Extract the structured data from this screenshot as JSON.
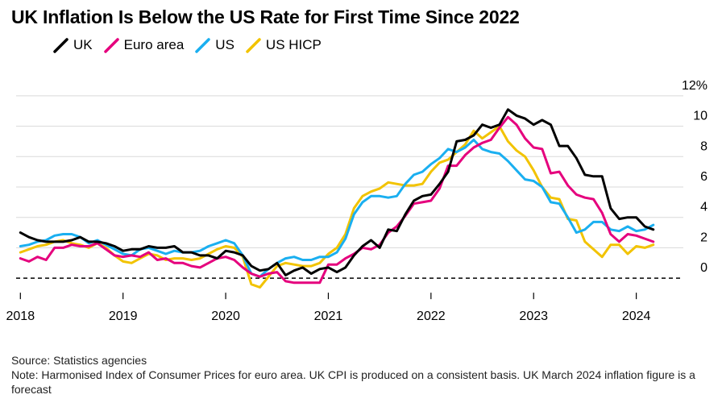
{
  "title": "UK Inflation Is Below the US Rate for First Time Since 2022",
  "source": "Source: Statistics agencies",
  "note": "Note: Harmonised Index of Consumer Prices for euro area. UK CPI is produced on a consistent basis. UK March 2024 inflation figure is a forecast",
  "chart_data": {
    "type": "line",
    "title": "UK Inflation Is Below the US Rate for First Time Since 2022",
    "xlabel": "",
    "ylabel": "",
    "x_ticks": [
      "2018",
      "2019",
      "2020",
      "2021",
      "2022",
      "2023",
      "2024"
    ],
    "y_ticks": [
      "0",
      "2",
      "4",
      "6",
      "8",
      "10",
      "12%"
    ],
    "xlim": [
      "2018-01",
      "2024-06"
    ],
    "ylim": [
      -1.0,
      13.0
    ],
    "grid": "horizontal",
    "zero_line": "dashed",
    "y_axis_side": "right",
    "legend_position": "top-left",
    "x": [
      "2018-01",
      "2018-02",
      "2018-03",
      "2018-04",
      "2018-05",
      "2018-06",
      "2018-07",
      "2018-08",
      "2018-09",
      "2018-10",
      "2018-11",
      "2018-12",
      "2019-01",
      "2019-02",
      "2019-03",
      "2019-04",
      "2019-05",
      "2019-06",
      "2019-07",
      "2019-08",
      "2019-09",
      "2019-10",
      "2019-11",
      "2019-12",
      "2020-01",
      "2020-02",
      "2020-03",
      "2020-04",
      "2020-05",
      "2020-06",
      "2020-07",
      "2020-08",
      "2020-09",
      "2020-10",
      "2020-11",
      "2020-12",
      "2021-01",
      "2021-02",
      "2021-03",
      "2021-04",
      "2021-05",
      "2021-06",
      "2021-07",
      "2021-08",
      "2021-09",
      "2021-10",
      "2021-11",
      "2021-12",
      "2022-01",
      "2022-02",
      "2022-03",
      "2022-04",
      "2022-05",
      "2022-06",
      "2022-07",
      "2022-08",
      "2022-09",
      "2022-10",
      "2022-11",
      "2022-12",
      "2023-01",
      "2023-02",
      "2023-03",
      "2023-04",
      "2023-05",
      "2023-06",
      "2023-07",
      "2023-08",
      "2023-09",
      "2023-10",
      "2023-11",
      "2023-12",
      "2024-01",
      "2024-02",
      "2024-03"
    ],
    "series": [
      {
        "name": "UK",
        "color": "#000000",
        "values": [
          3.0,
          2.7,
          2.5,
          2.4,
          2.4,
          2.4,
          2.5,
          2.7,
          2.4,
          2.4,
          2.3,
          2.1,
          1.8,
          1.9,
          1.9,
          2.1,
          2.0,
          2.0,
          2.1,
          1.7,
          1.7,
          1.5,
          1.5,
          1.3,
          1.8,
          1.7,
          1.5,
          0.8,
          0.5,
          0.6,
          1.0,
          0.2,
          0.5,
          0.7,
          0.3,
          0.6,
          0.7,
          0.4,
          0.7,
          1.5,
          2.1,
          2.5,
          2.0,
          3.2,
          3.1,
          4.2,
          5.1,
          5.4,
          5.5,
          6.2,
          7.0,
          9.0,
          9.1,
          9.4,
          10.1,
          9.9,
          10.1,
          11.1,
          10.7,
          10.5,
          10.1,
          10.4,
          10.1,
          8.7,
          8.7,
          7.9,
          6.8,
          6.7,
          6.7,
          4.6,
          3.9,
          4.0,
          4.0,
          3.4,
          3.2
        ]
      },
      {
        "name": "Euro area",
        "color": "#e5007d",
        "values": [
          1.3,
          1.1,
          1.4,
          1.2,
          2.0,
          2.0,
          2.2,
          2.1,
          2.1,
          2.3,
          1.9,
          1.5,
          1.4,
          1.5,
          1.4,
          1.7,
          1.2,
          1.3,
          1.0,
          1.0,
          0.8,
          0.7,
          1.0,
          1.3,
          1.4,
          1.2,
          0.7,
          0.3,
          0.1,
          0.3,
          0.4,
          -0.2,
          -0.3,
          -0.3,
          -0.3,
          -0.3,
          0.9,
          0.9,
          1.3,
          1.6,
          2.0,
          1.9,
          2.2,
          3.0,
          3.4,
          4.1,
          4.9,
          5.0,
          5.1,
          5.9,
          7.4,
          7.4,
          8.1,
          8.6,
          8.9,
          9.1,
          9.9,
          10.6,
          10.1,
          9.2,
          8.6,
          8.5,
          6.9,
          7.0,
          6.1,
          5.5,
          5.3,
          5.2,
          4.3,
          2.9,
          2.4,
          2.9,
          2.8,
          2.6,
          2.4
        ]
      },
      {
        "name": "US",
        "color": "#1aaff0",
        "values": [
          2.1,
          2.2,
          2.4,
          2.5,
          2.8,
          2.9,
          2.9,
          2.7,
          2.3,
          2.5,
          2.2,
          1.9,
          1.6,
          1.5,
          1.9,
          2.0,
          1.8,
          1.6,
          1.8,
          1.7,
          1.7,
          1.8,
          2.1,
          2.3,
          2.5,
          2.3,
          1.5,
          0.3,
          0.1,
          0.6,
          1.0,
          1.3,
          1.4,
          1.2,
          1.2,
          1.4,
          1.4,
          1.7,
          2.6,
          4.2,
          5.0,
          5.4,
          5.4,
          5.3,
          5.4,
          6.2,
          6.8,
          7.0,
          7.5,
          7.9,
          8.5,
          8.3,
          8.6,
          9.1,
          8.5,
          8.3,
          8.2,
          7.7,
          7.1,
          6.5,
          6.4,
          6.0,
          5.0,
          4.9,
          4.0,
          3.0,
          3.2,
          3.7,
          3.7,
          3.2,
          3.1,
          3.4,
          3.1,
          3.2,
          3.5
        ]
      },
      {
        "name": "US HICP",
        "color": "#f2c300",
        "values": [
          1.7,
          1.9,
          2.1,
          2.2,
          2.4,
          2.5,
          2.3,
          2.2,
          2.0,
          2.3,
          2.0,
          1.5,
          1.1,
          1.0,
          1.3,
          1.6,
          1.5,
          1.2,
          1.3,
          1.3,
          1.2,
          1.3,
          1.6,
          1.9,
          2.1,
          2.0,
          1.4,
          -0.4,
          -0.6,
          0.1,
          0.8,
          1.0,
          0.9,
          0.8,
          0.8,
          1.0,
          1.6,
          2.0,
          2.9,
          4.6,
          5.4,
          5.7,
          5.9,
          6.3,
          6.2,
          6.1,
          6.1,
          6.2,
          7.0,
          7.6,
          7.8,
          8.3,
          8.8,
          9.7,
          9.2,
          9.6,
          10.0,
          9.0,
          8.4,
          8.0,
          7.1,
          6.0,
          5.3,
          5.2,
          3.9,
          3.8,
          2.4,
          1.9,
          1.4,
          2.2,
          2.2,
          1.6,
          2.1,
          2.0,
          2.2
        ]
      }
    ]
  }
}
